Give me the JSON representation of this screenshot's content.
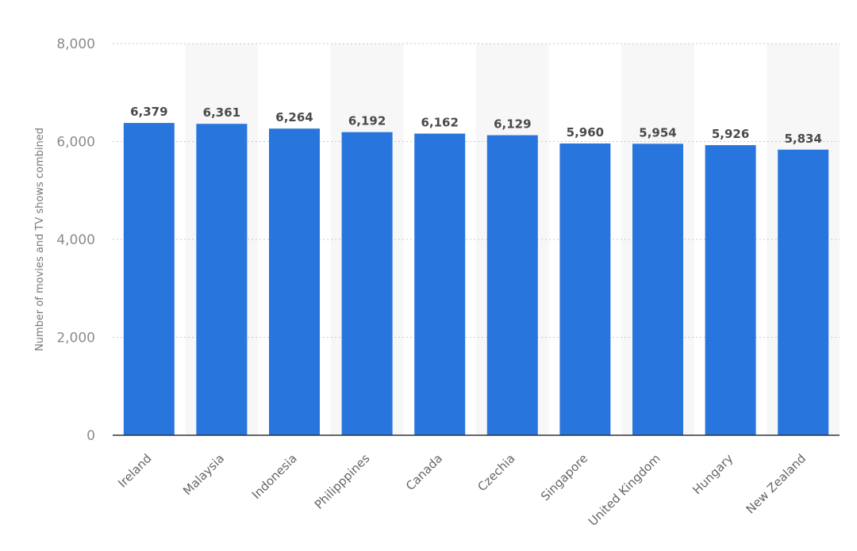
{
  "chart_data": {
    "type": "bar",
    "title": "",
    "xlabel": "",
    "ylabel": "Number of movies and TV shows combined",
    "categories": [
      "Ireland",
      "Malaysia",
      "Indonesia",
      "Philipppines",
      "Canada",
      "Czechia",
      "Singapore",
      "United Kingdom",
      "Hungary",
      "New Zealand"
    ],
    "values": [
      6379,
      6361,
      6264,
      6192,
      6162,
      6129,
      5960,
      5954,
      5926,
      5834
    ],
    "data_labels": [
      "6,379",
      "6,361",
      "6,264",
      "6,192",
      "6,162",
      "6,129",
      "5,960",
      "5,954",
      "5,926",
      "5,834"
    ],
    "ylim": [
      0,
      8000
    ],
    "yticks": [
      0,
      2000,
      4000,
      6000,
      8000
    ],
    "ytick_labels": [
      "0",
      "2,000",
      "4,000",
      "6,000",
      "8,000"
    ],
    "grid": true,
    "legend": "none",
    "bar_color": "#2876dd",
    "band_color": "#f7f7f7"
  }
}
